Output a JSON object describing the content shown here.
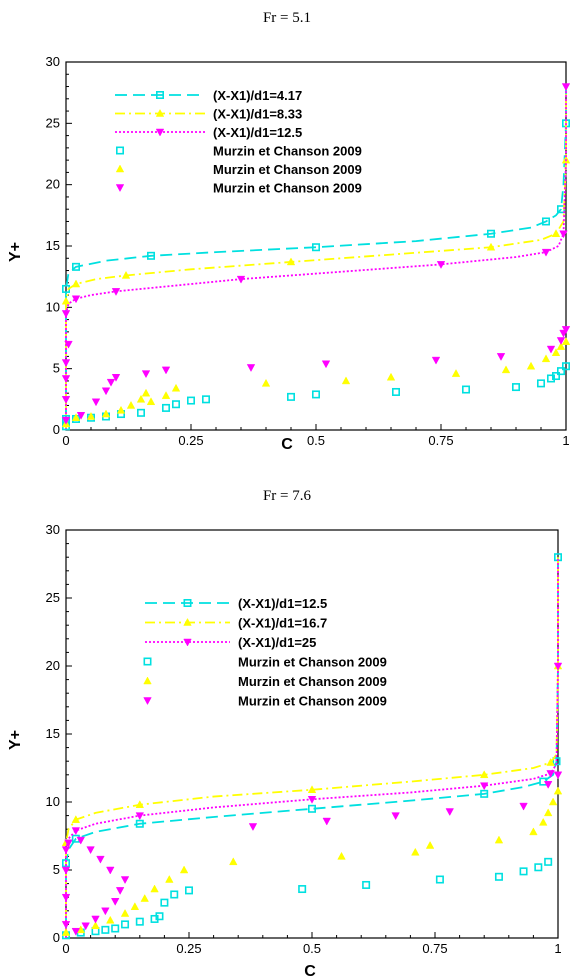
{
  "chart_data": [
    {
      "type": "line",
      "title": "Fr = 5.1",
      "xlabel": "C",
      "ylabel": "Y+",
      "xlim": [
        0,
        1
      ],
      "ylim": [
        0,
        30
      ],
      "xticks": [
        0,
        0.25,
        0.5,
        0.75,
        1
      ],
      "xtick_labels": [
        "0",
        "0.25",
        "0.5",
        "0.75",
        "1"
      ],
      "yticks": [
        0,
        5,
        10,
        15,
        20,
        25,
        30
      ],
      "ytick_labels": [
        "0",
        "5",
        "10",
        "15",
        "20",
        "25",
        "30"
      ],
      "grid": false,
      "legend_position": "top",
      "series": [
        {
          "name": "(X-X1)/d1=4.17",
          "kind": "line",
          "style": "dashed",
          "color": "#00e0e0",
          "marker": "square",
          "x": [
            0,
            0,
            0.005,
            0.02,
            0.08,
            0.17,
            0.3,
            0.5,
            0.7,
            0.85,
            0.93,
            0.96,
            0.98,
            0.99,
            0.995,
            1,
            1
          ],
          "y": [
            0,
            11.5,
            12.8,
            13.3,
            13.8,
            14.2,
            14.5,
            14.9,
            15.4,
            16.0,
            16.5,
            17.0,
            17.5,
            18.0,
            20,
            25,
            28
          ]
        },
        {
          "name": "(X-X1)/d1=8.33",
          "kind": "line",
          "style": "dashdot",
          "color": "#ffff00",
          "marker": "triangle-up",
          "x": [
            0,
            0,
            0.005,
            0.02,
            0.06,
            0.12,
            0.25,
            0.45,
            0.65,
            0.85,
            0.95,
            0.98,
            0.995,
            1,
            1
          ],
          "y": [
            0,
            10.5,
            11.5,
            11.9,
            12.3,
            12.6,
            13.1,
            13.7,
            14.3,
            14.9,
            15.5,
            16.0,
            17.0,
            22,
            28
          ]
        },
        {
          "name": "(X-X1)/d1=12.5",
          "kind": "line",
          "style": "dotted",
          "color": "#ff00ff",
          "marker": "triangle-down",
          "x": [
            0,
            0,
            0.005,
            0.02,
            0.05,
            0.1,
            0.2,
            0.35,
            0.55,
            0.75,
            0.9,
            0.96,
            0.985,
            0.995,
            1,
            1
          ],
          "y": [
            0,
            9.5,
            10.3,
            10.7,
            11.0,
            11.3,
            11.7,
            12.3,
            12.9,
            13.5,
            14.1,
            14.5,
            15.0,
            16.0,
            22,
            28
          ]
        },
        {
          "name": "Murzin et Chanson 2009",
          "kind": "scatter",
          "color": "#00e0e0",
          "marker": "square",
          "x": [
            0.0,
            0.0,
            0.0,
            0.02,
            0.05,
            0.08,
            0.11,
            0.15,
            0.2,
            0.22,
            0.25,
            0.28,
            0.45,
            0.5,
            0.66,
            0.8,
            0.9,
            0.95,
            0.97,
            0.98,
            0.99,
            1.0
          ],
          "y": [
            0.3,
            0.6,
            0.9,
            0.9,
            1.0,
            1.1,
            1.3,
            1.4,
            1.8,
            2.1,
            2.4,
            2.5,
            2.7,
            2.9,
            3.1,
            3.3,
            3.5,
            3.8,
            4.2,
            4.4,
            4.8,
            5.2
          ]
        },
        {
          "name": "Murzin et Chanson 2009",
          "kind": "scatter",
          "color": "#ffff00",
          "marker": "triangle-up",
          "x": [
            0.0,
            0.02,
            0.05,
            0.08,
            0.11,
            0.13,
            0.15,
            0.16,
            0.17,
            0.2,
            0.22,
            0.4,
            0.56,
            0.65,
            0.78,
            0.88,
            0.93,
            0.96,
            0.98,
            0.99,
            1.0
          ],
          "y": [
            0.5,
            1.0,
            1.1,
            1.3,
            1.6,
            2.0,
            2.5,
            3.0,
            2.3,
            2.8,
            3.4,
            3.8,
            4.0,
            4.3,
            4.6,
            4.9,
            5.2,
            5.8,
            6.3,
            6.8,
            7.2
          ]
        },
        {
          "name": "Murzin et Chanson 2009",
          "kind": "scatter",
          "color": "#ff00ff",
          "marker": "triangle-down",
          "x": [
            0.0,
            0.0,
            0.0,
            0.0,
            0.005,
            0.03,
            0.06,
            0.08,
            0.09,
            0.1,
            0.16,
            0.2,
            0.37,
            0.52,
            0.74,
            0.87,
            0.97,
            0.99,
            0.995,
            1.0
          ],
          "y": [
            0.8,
            2.5,
            4.2,
            5.5,
            7.0,
            1.2,
            2.3,
            3.2,
            3.9,
            4.3,
            4.6,
            4.9,
            5.1,
            5.4,
            5.7,
            6.0,
            6.6,
            7.3,
            7.9,
            8.2
          ]
        }
      ]
    },
    {
      "type": "line",
      "title": "Fr = 7.6",
      "xlabel": "C",
      "ylabel": "Y+",
      "xlim": [
        0,
        1
      ],
      "ylim": [
        0,
        30
      ],
      "xticks": [
        0,
        0.25,
        0.5,
        0.75,
        1
      ],
      "xtick_labels": [
        "0",
        "0.25",
        "0.5",
        "0.75",
        "1"
      ],
      "yticks": [
        0,
        5,
        10,
        15,
        20,
        25,
        30
      ],
      "ytick_labels": [
        "0",
        "5",
        "10",
        "15",
        "20",
        "25",
        "30"
      ],
      "grid": false,
      "legend_position": "top",
      "series": [
        {
          "name": "(X-X1)/d1=12.5",
          "kind": "line",
          "style": "dashed",
          "color": "#00e0e0",
          "marker": "square",
          "x": [
            0,
            0,
            0.005,
            0.02,
            0.06,
            0.15,
            0.3,
            0.5,
            0.7,
            0.85,
            0.93,
            0.97,
            0.99,
            0.997,
            1,
            1
          ],
          "y": [
            0,
            5.5,
            6.5,
            7.3,
            7.8,
            8.4,
            8.9,
            9.5,
            10.1,
            10.6,
            11.1,
            11.5,
            12.0,
            13.0,
            20,
            28
          ]
        },
        {
          "name": "(X-X1)/d1=16.7",
          "kind": "line",
          "style": "dashdot",
          "color": "#ffff00",
          "marker": "triangle-up",
          "x": [
            0,
            0,
            0.005,
            0.02,
            0.06,
            0.15,
            0.3,
            0.5,
            0.7,
            0.85,
            0.95,
            0.985,
            0.997,
            1,
            1
          ],
          "y": [
            0,
            7.0,
            8.0,
            8.7,
            9.2,
            9.8,
            10.4,
            10.9,
            11.5,
            12.0,
            12.5,
            12.9,
            13.5,
            20,
            28
          ]
        },
        {
          "name": "(X-X1)/d1=25",
          "kind": "line",
          "style": "dotted",
          "color": "#ff00ff",
          "marker": "triangle-down",
          "x": [
            0,
            0,
            0.005,
            0.02,
            0.06,
            0.15,
            0.3,
            0.5,
            0.7,
            0.85,
            0.95,
            0.985,
            0.997,
            1,
            1
          ],
          "y": [
            0,
            6.5,
            7.3,
            7.9,
            8.4,
            9.0,
            9.6,
            10.2,
            10.7,
            11.2,
            11.7,
            12.1,
            12.8,
            20,
            28
          ]
        },
        {
          "name": "Murzin et Chanson 2009",
          "kind": "scatter",
          "color": "#00e0e0",
          "marker": "square",
          "x": [
            0.0,
            0.03,
            0.06,
            0.08,
            0.1,
            0.12,
            0.15,
            0.18,
            0.19,
            0.2,
            0.22,
            0.25,
            0.48,
            0.61,
            0.76,
            0.88,
            0.93,
            0.96,
            0.98
          ],
          "y": [
            0.2,
            0.4,
            0.5,
            0.6,
            0.7,
            1.0,
            1.2,
            1.4,
            1.6,
            2.6,
            3.2,
            3.5,
            3.6,
            3.9,
            4.3,
            4.5,
            4.9,
            5.2,
            5.6
          ]
        },
        {
          "name": "Murzin et Chanson 2009",
          "kind": "scatter",
          "color": "#ffff00",
          "marker": "triangle-up",
          "x": [
            0.0,
            0.03,
            0.06,
            0.09,
            0.12,
            0.14,
            0.16,
            0.18,
            0.21,
            0.24,
            0.34,
            0.56,
            0.71,
            0.74,
            0.88,
            0.95,
            0.97,
            0.98,
            0.99,
            1.0
          ],
          "y": [
            0.4,
            0.6,
            0.9,
            1.3,
            1.8,
            2.3,
            2.9,
            3.6,
            4.3,
            5.0,
            5.6,
            6.0,
            6.3,
            6.8,
            7.2,
            7.8,
            8.5,
            9.2,
            10.0,
            10.8
          ]
        },
        {
          "name": "Murzin et Chanson 2009",
          "kind": "scatter",
          "color": "#ff00ff",
          "marker": "triangle-down",
          "x": [
            0.0,
            0.0,
            0.0,
            0.005,
            0.02,
            0.04,
            0.06,
            0.08,
            0.1,
            0.11,
            0.12,
            0.09,
            0.07,
            0.05,
            0.03,
            0.38,
            0.53,
            0.67,
            0.78,
            0.93,
            0.98,
            1.0
          ],
          "y": [
            1.0,
            3.0,
            5.0,
            7.0,
            0.5,
            0.9,
            1.4,
            2.0,
            2.7,
            3.5,
            4.3,
            5.0,
            5.8,
            6.5,
            7.2,
            8.2,
            8.6,
            9.0,
            9.3,
            9.7,
            11.3,
            12.0
          ]
        }
      ]
    }
  ]
}
